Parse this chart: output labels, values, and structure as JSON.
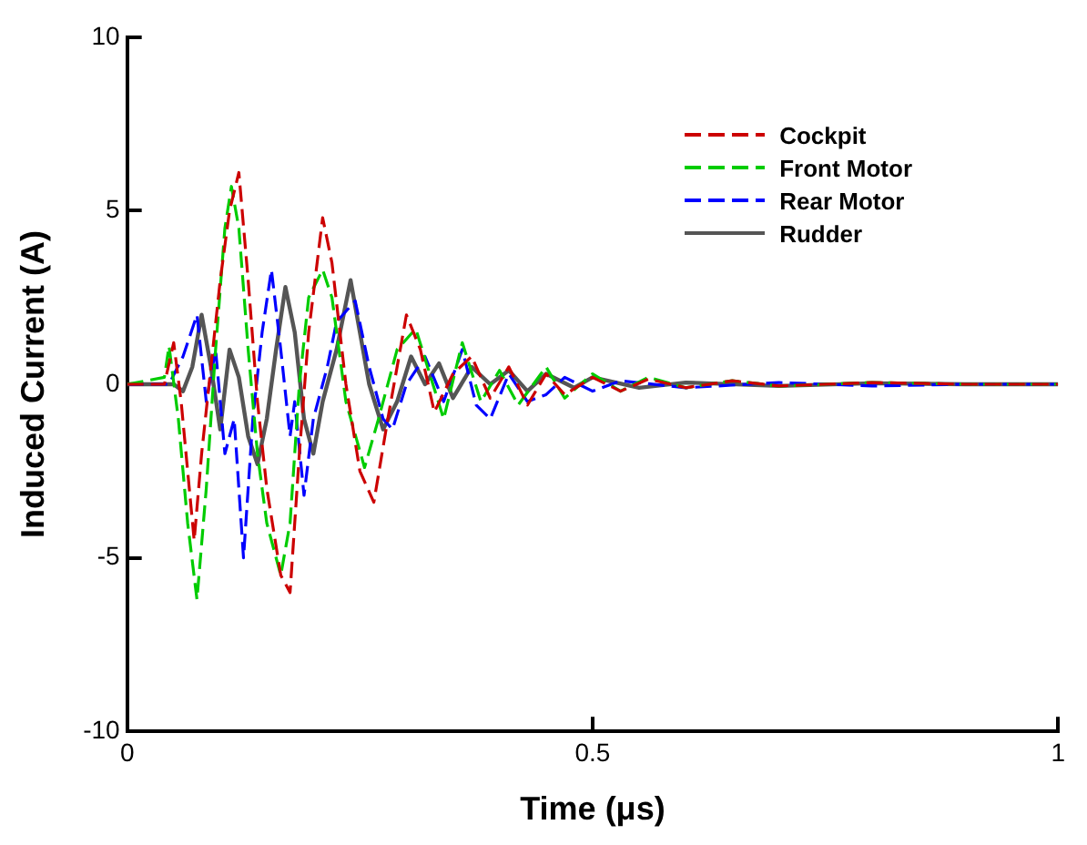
{
  "chart_data": {
    "type": "line",
    "xlabel": "Time (μs)",
    "ylabel": "Induced Current (A)",
    "xlim": [
      0,
      1
    ],
    "xticks": [
      0,
      0.5,
      1
    ],
    "ylim": [
      -10,
      10
    ],
    "yticks": [
      -10,
      -5,
      0,
      5,
      10
    ],
    "grid": false,
    "legend": "top right",
    "marker": "none",
    "series": [
      {
        "name": "Cockpit",
        "color": "#cc0000",
        "line_style": "dashed",
        "x": [
          0,
          0.04,
          0.05,
          0.058,
          0.065,
          0.072,
          0.08,
          0.09,
          0.1,
          0.11,
          0.12,
          0.13,
          0.14,
          0.15,
          0.165,
          0.175,
          0.185,
          0.195,
          0.21,
          0.22,
          0.235,
          0.25,
          0.265,
          0.28,
          0.3,
          0.315,
          0.33,
          0.35,
          0.37,
          0.39,
          0.41,
          0.43,
          0.45,
          0.47,
          0.5,
          0.53,
          0.56,
          0.6,
          0.65,
          0.7,
          0.8,
          0.9,
          1
        ],
        "values": [
          0,
          0,
          1.2,
          -0.5,
          -2.5,
          -4.5,
          -2,
          0.5,
          3,
          5,
          6.1,
          3,
          -0.5,
          -3,
          -5.5,
          -6,
          -2,
          1.5,
          4.8,
          3.5,
          0,
          -2.5,
          -3.4,
          -1,
          2,
          1,
          -0.8,
          0.3,
          0.8,
          -0.4,
          0.5,
          -0.6,
          0.3,
          -0.3,
          0.2,
          -0.2,
          0.15,
          -0.1,
          0.1,
          -0.05,
          0.05,
          0,
          0
        ]
      },
      {
        "name": "Front Motor",
        "color": "#00cc00",
        "line_style": "dashed",
        "x": [
          0,
          0.04,
          0.045,
          0.055,
          0.065,
          0.075,
          0.085,
          0.095,
          0.105,
          0.112,
          0.12,
          0.13,
          0.14,
          0.15,
          0.165,
          0.175,
          0.185,
          0.195,
          0.21,
          0.22,
          0.235,
          0.255,
          0.27,
          0.29,
          0.31,
          0.325,
          0.34,
          0.36,
          0.38,
          0.4,
          0.42,
          0.45,
          0.47,
          0.5,
          0.53,
          0.56,
          0.6,
          0.65,
          0.7,
          0.8,
          0.9,
          1
        ],
        "values": [
          0,
          0.2,
          1.1,
          -1,
          -4,
          -6.2,
          -3,
          1,
          4.5,
          5.7,
          4.5,
          1,
          -2,
          -4,
          -5.5,
          -4,
          0,
          2.5,
          3.3,
          2.5,
          -0.5,
          -2.4,
          -1,
          1,
          1.6,
          0.3,
          -1,
          1.2,
          -0.5,
          0.4,
          -0.6,
          0.5,
          -0.4,
          0.3,
          -0.2,
          0.2,
          -0.1,
          0.1,
          -0.05,
          0.05,
          0,
          0
        ]
      },
      {
        "name": "Rear Motor",
        "color": "#0000ff",
        "line_style": "dashed",
        "x": [
          0,
          0.045,
          0.06,
          0.075,
          0.085,
          0.095,
          0.105,
          0.115,
          0.125,
          0.135,
          0.145,
          0.155,
          0.165,
          0.175,
          0.18,
          0.19,
          0.2,
          0.215,
          0.225,
          0.245,
          0.26,
          0.275,
          0.285,
          0.3,
          0.32,
          0.34,
          0.36,
          0.375,
          0.39,
          0.41,
          0.43,
          0.45,
          0.47,
          0.5,
          0.53,
          0.6,
          0.7,
          0.8,
          0.9,
          1
        ],
        "values": [
          0,
          0,
          0.8,
          2,
          -0.5,
          1,
          -2,
          -1,
          -5,
          -1,
          1.5,
          3.3,
          1,
          -1.5,
          -0.5,
          -3.2,
          -1,
          0.5,
          1.8,
          2.4,
          0.5,
          -1,
          -1.3,
          0,
          0.8,
          -0.5,
          1,
          -0.6,
          -1,
          0.3,
          -0.5,
          -0.3,
          0.2,
          -0.2,
          0.1,
          -0.1,
          0.05,
          -0.05,
          0,
          0
        ]
      },
      {
        "name": "Rudder",
        "color": "#555555",
        "line_style": "solid",
        "x": [
          0,
          0.05,
          0.06,
          0.07,
          0.08,
          0.09,
          0.1,
          0.11,
          0.12,
          0.13,
          0.14,
          0.15,
          0.16,
          0.17,
          0.18,
          0.19,
          0.2,
          0.21,
          0.225,
          0.24,
          0.25,
          0.26,
          0.275,
          0.29,
          0.305,
          0.32,
          0.335,
          0.35,
          0.37,
          0.39,
          0.41,
          0.43,
          0.45,
          0.48,
          0.5,
          0.55,
          0.6,
          0.7,
          0.8,
          0.9,
          1
        ],
        "values": [
          0,
          0,
          -0.2,
          0.5,
          2,
          0.5,
          -1.3,
          1,
          0.2,
          -1.5,
          -2.3,
          -1,
          1,
          2.8,
          1.5,
          -1,
          -2,
          -0.5,
          1,
          3,
          1.5,
          0,
          -1.3,
          -0.5,
          0.8,
          0,
          0.6,
          -0.4,
          0.5,
          0,
          0.4,
          -0.2,
          0.3,
          -0.1,
          0.2,
          -0.1,
          0.05,
          -0.05,
          0.03,
          0,
          0
        ]
      }
    ]
  }
}
